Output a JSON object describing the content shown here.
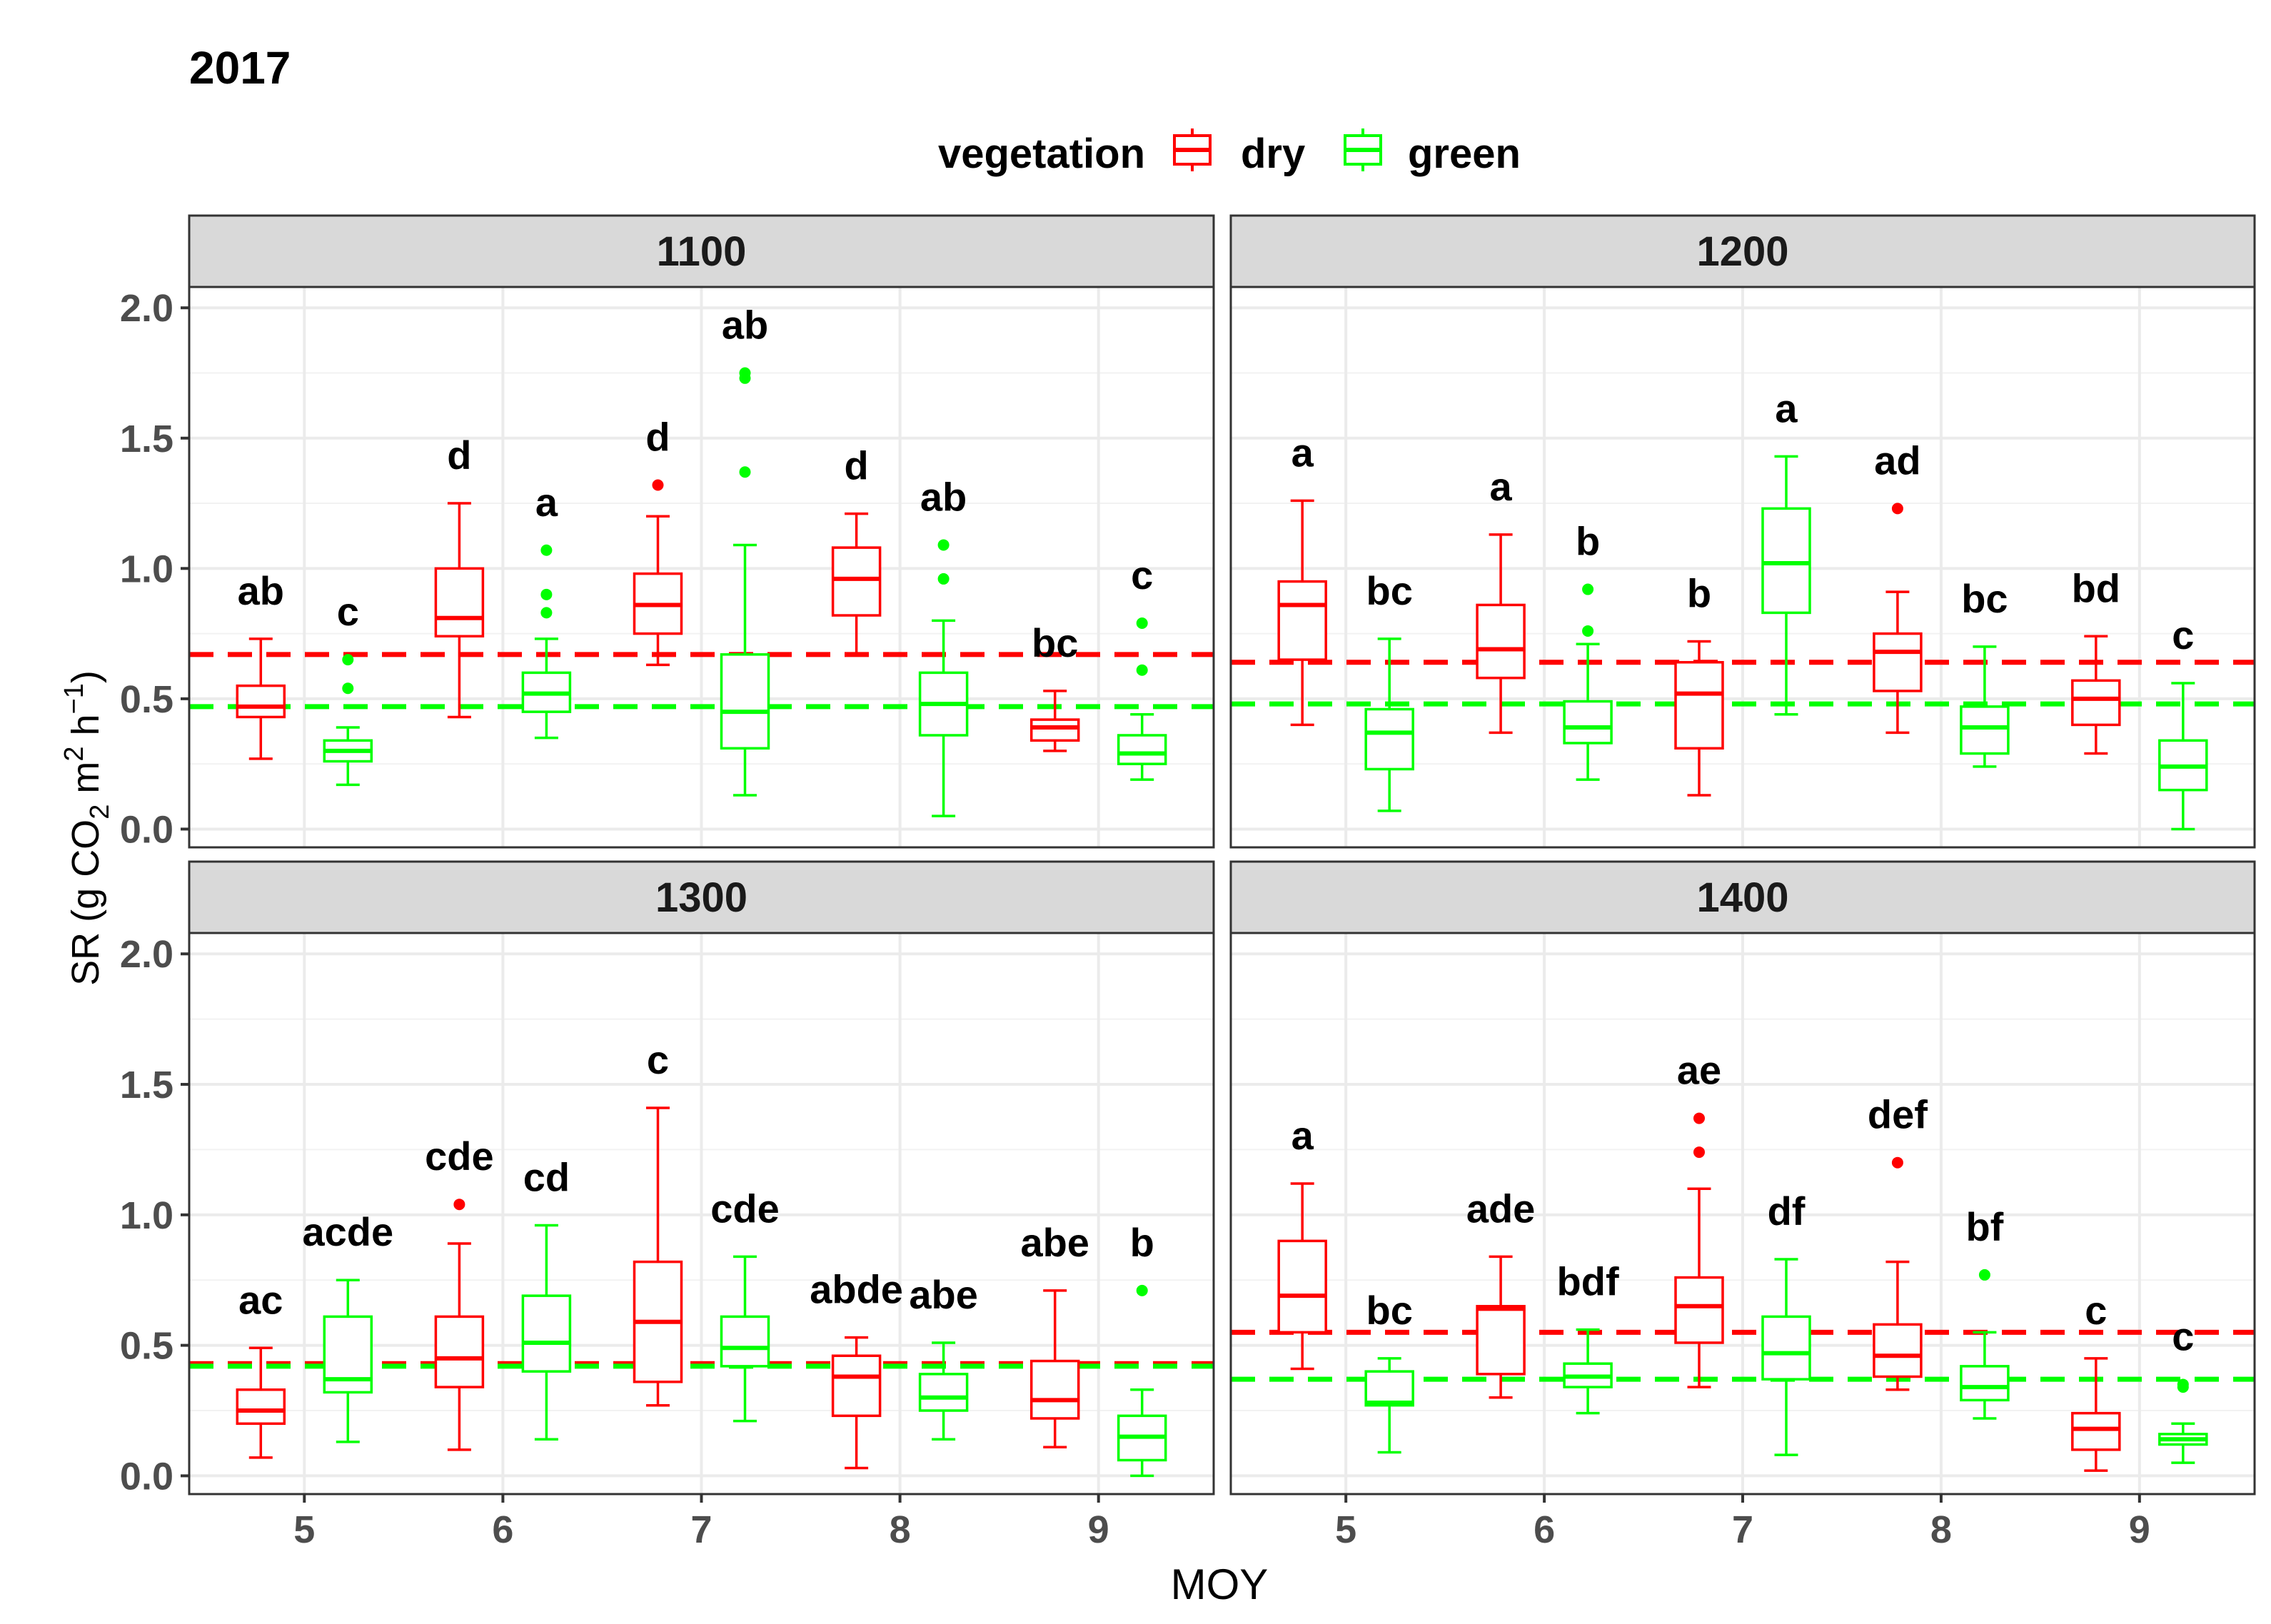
{
  "chart_data": {
    "type": "boxplot",
    "title": "2017",
    "xlabel": "MOY",
    "ylabel_parts": {
      "sr": "SR",
      "open": "(g CO",
      "two": "2",
      "m": " m",
      "sup2": "2",
      "h": " h",
      "supneg1": "−1",
      "close": ")"
    },
    "legend": {
      "title": "vegetation",
      "position": "top",
      "entries": [
        "dry",
        "green"
      ]
    },
    "colors": {
      "dry": "#ff0000",
      "green": "#00ff00"
    },
    "x_ticks": [
      "5",
      "6",
      "7",
      "8",
      "9"
    ],
    "y_ticks": [
      "0.0",
      "0.5",
      "1.0",
      "1.5",
      "2.0"
    ],
    "ylim": [
      -0.07,
      2.08
    ],
    "panels": [
      {
        "title": "1100",
        "ref_lines": {
          "dry": 0.67,
          "green": 0.47
        },
        "boxes": [
          {
            "moy": 5,
            "veg": "dry",
            "min": 0.27,
            "q1": 0.43,
            "median": 0.47,
            "q3": 0.55,
            "max": 0.73,
            "outliers": [],
            "label": "ab"
          },
          {
            "moy": 5,
            "veg": "green",
            "min": 0.17,
            "q1": 0.26,
            "median": 0.3,
            "q3": 0.34,
            "max": 0.39,
            "outliers": [
              0.54,
              0.65
            ],
            "label": "c"
          },
          {
            "moy": 6,
            "veg": "dry",
            "min": 0.43,
            "q1": 0.74,
            "median": 0.81,
            "q3": 1.0,
            "max": 1.25,
            "outliers": [],
            "label": "d"
          },
          {
            "moy": 6,
            "veg": "green",
            "min": 0.35,
            "q1": 0.45,
            "median": 0.52,
            "q3": 0.6,
            "max": 0.73,
            "outliers": [
              0.83,
              0.9,
              1.07
            ],
            "label": "a"
          },
          {
            "moy": 7,
            "veg": "dry",
            "min": 0.63,
            "q1": 0.75,
            "median": 0.86,
            "q3": 0.98,
            "max": 1.2,
            "outliers": [
              1.32
            ],
            "label": "d"
          },
          {
            "moy": 7,
            "veg": "green",
            "min": 0.13,
            "q1": 0.31,
            "median": 0.45,
            "q3": 0.67,
            "max": 1.09,
            "outliers": [
              1.37,
              1.73,
              1.75
            ],
            "label": "ab"
          },
          {
            "moy": 8,
            "veg": "dry",
            "min": 0.67,
            "q1": 0.82,
            "median": 0.96,
            "q3": 1.08,
            "max": 1.21,
            "outliers": [],
            "label": "d"
          },
          {
            "moy": 8,
            "veg": "green",
            "min": 0.05,
            "q1": 0.36,
            "median": 0.48,
            "q3": 0.6,
            "max": 0.8,
            "outliers": [
              0.96,
              1.09
            ],
            "label": "ab"
          },
          {
            "moy": 9,
            "veg": "dry",
            "min": 0.3,
            "q1": 0.34,
            "median": 0.39,
            "q3": 0.42,
            "max": 0.53,
            "outliers": [],
            "label": "bc"
          },
          {
            "moy": 9,
            "veg": "green",
            "min": 0.19,
            "q1": 0.25,
            "median": 0.29,
            "q3": 0.36,
            "max": 0.44,
            "outliers": [
              0.61,
              0.79
            ],
            "label": "c"
          }
        ]
      },
      {
        "title": "1200",
        "ref_lines": {
          "dry": 0.64,
          "green": 0.48
        },
        "boxes": [
          {
            "moy": 5,
            "veg": "dry",
            "min": 0.4,
            "q1": 0.65,
            "median": 0.86,
            "q3": 0.95,
            "max": 1.26,
            "outliers": [],
            "label": "a"
          },
          {
            "moy": 5,
            "veg": "green",
            "min": 0.07,
            "q1": 0.23,
            "median": 0.37,
            "q3": 0.46,
            "max": 0.73,
            "outliers": [],
            "label": "bc"
          },
          {
            "moy": 6,
            "veg": "dry",
            "min": 0.37,
            "q1": 0.58,
            "median": 0.69,
            "q3": 0.86,
            "max": 1.13,
            "outliers": [],
            "label": "a"
          },
          {
            "moy": 6,
            "veg": "green",
            "min": 0.19,
            "q1": 0.33,
            "median": 0.39,
            "q3": 0.49,
            "max": 0.71,
            "outliers": [
              0.76,
              0.92
            ],
            "label": "b"
          },
          {
            "moy": 7,
            "veg": "dry",
            "min": 0.13,
            "q1": 0.31,
            "median": 0.52,
            "q3": 0.64,
            "max": 0.72,
            "outliers": [],
            "label": "b"
          },
          {
            "moy": 7,
            "veg": "green",
            "min": 0.44,
            "q1": 0.83,
            "median": 1.02,
            "q3": 1.23,
            "max": 1.43,
            "outliers": [],
            "label": "a"
          },
          {
            "moy": 8,
            "veg": "dry",
            "min": 0.37,
            "q1": 0.53,
            "median": 0.68,
            "q3": 0.75,
            "max": 0.91,
            "outliers": [
              1.23
            ],
            "label": "ad"
          },
          {
            "moy": 8,
            "veg": "green",
            "min": 0.24,
            "q1": 0.29,
            "median": 0.39,
            "q3": 0.47,
            "max": 0.7,
            "outliers": [],
            "label": "bc"
          },
          {
            "moy": 9,
            "veg": "dry",
            "min": 0.29,
            "q1": 0.4,
            "median": 0.5,
            "q3": 0.57,
            "max": 0.74,
            "outliers": [],
            "label": "bd"
          },
          {
            "moy": 9,
            "veg": "green",
            "min": 0.0,
            "q1": 0.15,
            "median": 0.24,
            "q3": 0.34,
            "max": 0.56,
            "outliers": [],
            "label": "c"
          }
        ]
      },
      {
        "title": "1300",
        "ref_lines": {
          "dry": 0.43,
          "green": 0.42
        },
        "boxes": [
          {
            "moy": 5,
            "veg": "dry",
            "min": 0.07,
            "q1": 0.2,
            "median": 0.25,
            "q3": 0.33,
            "max": 0.49,
            "outliers": [],
            "label": "ac"
          },
          {
            "moy": 5,
            "veg": "green",
            "min": 0.13,
            "q1": 0.32,
            "median": 0.37,
            "q3": 0.61,
            "max": 0.75,
            "outliers": [],
            "label": "acde"
          },
          {
            "moy": 6,
            "veg": "dry",
            "min": 0.1,
            "q1": 0.34,
            "median": 0.45,
            "q3": 0.61,
            "max": 0.89,
            "outliers": [
              1.04
            ],
            "label": "cde"
          },
          {
            "moy": 6,
            "veg": "green",
            "min": 0.14,
            "q1": 0.4,
            "median": 0.51,
            "q3": 0.69,
            "max": 0.96,
            "outliers": [],
            "label": "cd"
          },
          {
            "moy": 7,
            "veg": "dry",
            "min": 0.27,
            "q1": 0.36,
            "median": 0.59,
            "q3": 0.82,
            "max": 1.41,
            "outliers": [],
            "label": "c"
          },
          {
            "moy": 7,
            "veg": "green",
            "min": 0.21,
            "q1": 0.42,
            "median": 0.49,
            "q3": 0.61,
            "max": 0.84,
            "outliers": [],
            "label": "cde"
          },
          {
            "moy": 8,
            "veg": "dry",
            "min": 0.03,
            "q1": 0.23,
            "median": 0.38,
            "q3": 0.46,
            "max": 0.53,
            "outliers": [],
            "label": "abde"
          },
          {
            "moy": 8,
            "veg": "green",
            "min": 0.14,
            "q1": 0.25,
            "median": 0.3,
            "q3": 0.39,
            "max": 0.51,
            "outliers": [],
            "label": "abe"
          },
          {
            "moy": 9,
            "veg": "dry",
            "min": 0.11,
            "q1": 0.22,
            "median": 0.29,
            "q3": 0.44,
            "max": 0.71,
            "outliers": [],
            "label": "abe"
          },
          {
            "moy": 9,
            "veg": "green",
            "min": 0.0,
            "q1": 0.06,
            "median": 0.15,
            "q3": 0.23,
            "max": 0.33,
            "outliers": [
              0.71
            ],
            "label": "b"
          }
        ]
      },
      {
        "title": "1400",
        "ref_lines": {
          "dry": 0.55,
          "green": 0.37
        },
        "boxes": [
          {
            "moy": 5,
            "veg": "dry",
            "min": 0.41,
            "q1": 0.55,
            "median": 0.69,
            "q3": 0.9,
            "max": 1.12,
            "outliers": [],
            "label": "a"
          },
          {
            "moy": 5,
            "veg": "green",
            "min": 0.09,
            "q1": 0.27,
            "median": 0.28,
            "q3": 0.4,
            "max": 0.45,
            "outliers": [],
            "label": "bc"
          },
          {
            "moy": 6,
            "veg": "dry",
            "min": 0.3,
            "q1": 0.39,
            "median": 0.64,
            "q3": 0.65,
            "max": 0.84,
            "outliers": [],
            "label": "ade"
          },
          {
            "moy": 6,
            "veg": "green",
            "min": 0.24,
            "q1": 0.34,
            "median": 0.38,
            "q3": 0.43,
            "max": 0.56,
            "outliers": [],
            "label": "bdf"
          },
          {
            "moy": 7,
            "veg": "dry",
            "min": 0.34,
            "q1": 0.51,
            "median": 0.65,
            "q3": 0.76,
            "max": 1.1,
            "outliers": [
              1.24,
              1.37
            ],
            "label": "ae"
          },
          {
            "moy": 7,
            "veg": "green",
            "min": 0.08,
            "q1": 0.37,
            "median": 0.47,
            "q3": 0.61,
            "max": 0.83,
            "outliers": [],
            "label": "df"
          },
          {
            "moy": 8,
            "veg": "dry",
            "min": 0.33,
            "q1": 0.38,
            "median": 0.46,
            "q3": 0.58,
            "max": 0.82,
            "outliers": [
              1.2
            ],
            "label": "def"
          },
          {
            "moy": 8,
            "veg": "green",
            "min": 0.22,
            "q1": 0.29,
            "median": 0.34,
            "q3": 0.42,
            "max": 0.55,
            "outliers": [
              0.77
            ],
            "label": "bf"
          },
          {
            "moy": 9,
            "veg": "dry",
            "min": 0.02,
            "q1": 0.1,
            "median": 0.18,
            "q3": 0.24,
            "max": 0.45,
            "outliers": [],
            "label": "c"
          },
          {
            "moy": 9,
            "veg": "green",
            "min": 0.05,
            "q1": 0.12,
            "median": 0.14,
            "q3": 0.16,
            "max": 0.2,
            "outliers": [
              0.34,
              0.35
            ],
            "label": "c"
          }
        ]
      }
    ]
  }
}
